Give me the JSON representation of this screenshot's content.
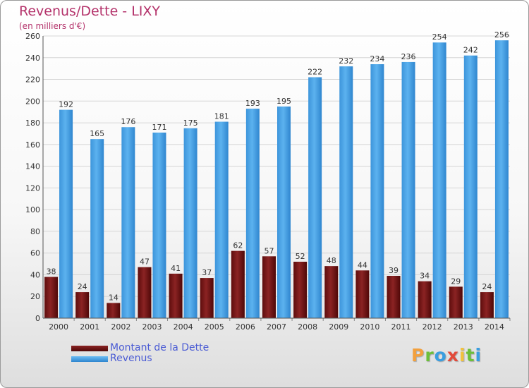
{
  "header": {
    "title": "Revenus/Dette - LIXY",
    "subtitle": "(en milliers d'€)"
  },
  "chart_data": {
    "type": "bar",
    "title": "Revenus/Dette - LIXY",
    "subtitle": "(en milliers d'€)",
    "xlabel": "",
    "ylabel": "",
    "ylim": [
      0,
      260
    ],
    "yticks": [
      0,
      20,
      40,
      60,
      80,
      100,
      120,
      140,
      160,
      180,
      200,
      220,
      240,
      260
    ],
    "grid": true,
    "legend_position": "bottom-left",
    "categories": [
      "2000",
      "2001",
      "2002",
      "2003",
      "2004",
      "2005",
      "2006",
      "2007",
      "2008",
      "2009",
      "2010",
      "2011",
      "2012",
      "2013",
      "2014"
    ],
    "series": [
      {
        "name": "Montant de la Dette",
        "color": "#7a1a1a",
        "values": [
          38,
          24,
          14,
          47,
          41,
          37,
          62,
          57,
          52,
          48,
          44,
          39,
          34,
          29,
          24
        ]
      },
      {
        "name": "Revenus",
        "color": "#4aa3e6",
        "values": [
          192,
          165,
          176,
          171,
          175,
          181,
          193,
          195,
          222,
          232,
          234,
          236,
          254,
          242,
          256
        ]
      }
    ]
  },
  "legend": {
    "items": [
      {
        "label": "Montant de la Dette",
        "color": "#7a1a1a"
      },
      {
        "label": "Revenus",
        "color": "#4aa3e6"
      }
    ]
  },
  "logo": {
    "letters": [
      "P",
      "r",
      "o",
      "x",
      "i",
      "t",
      "i"
    ],
    "colors": [
      "#f2a03d",
      "#6cbf3a",
      "#3a9ee0",
      "#e24a3a",
      "#f2c23d",
      "#6cbf3a",
      "#3a9ee0"
    ]
  }
}
